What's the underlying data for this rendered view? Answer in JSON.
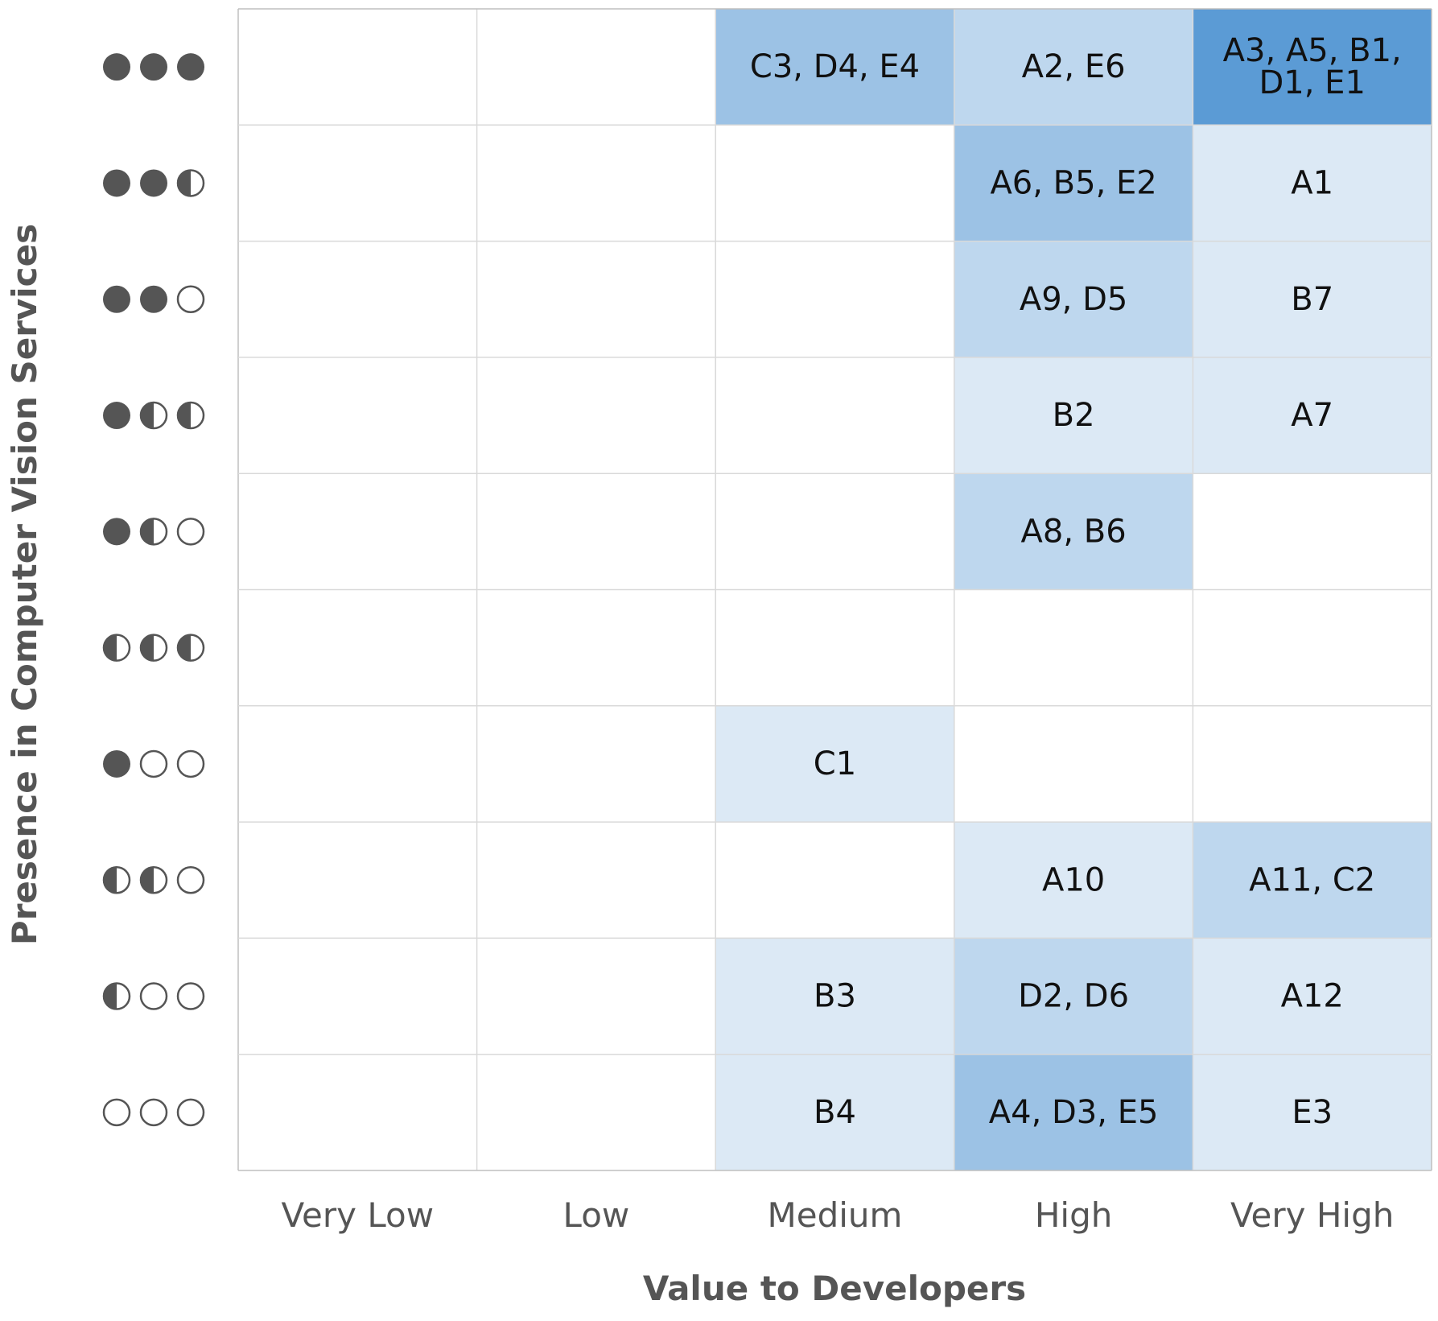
{
  "chart_data": {
    "type": "heatmap",
    "xlabel": "Value to Developers",
    "ylabel": "Presence in Computer Vision Services",
    "x_categories": [
      "Very Low",
      "Low",
      "Medium",
      "High",
      "Very High"
    ],
    "y_categories": [
      {
        "symbols": [
          "full",
          "full",
          "full"
        ],
        "label": "●●●"
      },
      {
        "symbols": [
          "full",
          "full",
          "half"
        ],
        "label": "●●◑"
      },
      {
        "symbols": [
          "full",
          "full",
          "empty"
        ],
        "label": "●●○"
      },
      {
        "symbols": [
          "full",
          "half",
          "half"
        ],
        "label": "●◑◑"
      },
      {
        "symbols": [
          "full",
          "half",
          "empty"
        ],
        "label": "●◑○"
      },
      {
        "symbols": [
          "half",
          "half",
          "half"
        ],
        "label": "◑◑◑"
      },
      {
        "symbols": [
          "full",
          "empty",
          "empty"
        ],
        "label": "●○○"
      },
      {
        "symbols": [
          "half",
          "half",
          "empty"
        ],
        "label": "◑◑○"
      },
      {
        "symbols": [
          "half",
          "empty",
          "empty"
        ],
        "label": "◑○○"
      },
      {
        "symbols": [
          "empty",
          "empty",
          "empty"
        ],
        "label": "○○○"
      }
    ],
    "cells": [
      [
        [],
        [],
        [
          "C3",
          "D4",
          "E4"
        ],
        [
          "A2",
          "E6"
        ],
        [
          "A3",
          "A5",
          "B1",
          "D1",
          "E1"
        ]
      ],
      [
        [],
        [],
        [],
        [
          "A6",
          "B5",
          "E2"
        ],
        [
          "A1"
        ]
      ],
      [
        [],
        [],
        [],
        [
          "A9",
          "D5"
        ],
        [
          "B7"
        ]
      ],
      [
        [],
        [],
        [],
        [
          "B2"
        ],
        [
          "A7"
        ]
      ],
      [
        [],
        [],
        [],
        [
          "A8",
          "B6"
        ],
        []
      ],
      [
        [],
        [],
        [],
        [],
        []
      ],
      [
        [],
        [],
        [
          "C1"
        ],
        [],
        []
      ],
      [
        [],
        [],
        [],
        [
          "A10"
        ],
        [
          "A11",
          "C2"
        ]
      ],
      [
        [],
        [],
        [
          "B3"
        ],
        [
          "D2",
          "D6"
        ],
        [
          "A12"
        ]
      ],
      [
        [],
        [],
        [
          "B4"
        ],
        [
          "A4",
          "D3",
          "E5"
        ],
        [
          "E3"
        ]
      ]
    ],
    "cell_text_lines": {
      "0-4": [
        "A3, A5, B1,",
        "D1, E1"
      ]
    },
    "color_scale": {
      "0": "#ffffff",
      "1": "#dce9f5",
      "2": "#bed7ee",
      "3": "#9cc2e5",
      "5": "#5b9bd5"
    },
    "grid_color": "#d9d9d9",
    "symbol_color": "#555555",
    "grid": true
  }
}
